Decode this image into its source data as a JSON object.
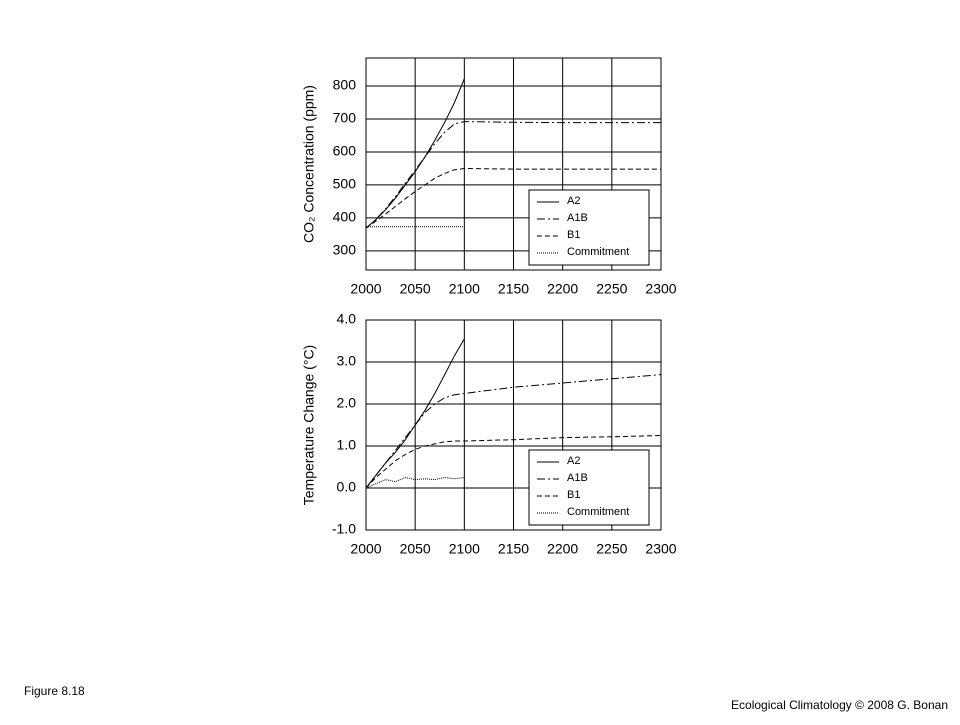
{
  "chart_data": [
    {
      "type": "line",
      "y_label": "CO₂ Concentration (ppm)",
      "x": [
        2000,
        2010,
        2020,
        2030,
        2040,
        2050,
        2060,
        2070,
        2080,
        2090,
        2100,
        2150,
        2200,
        2250,
        2300
      ],
      "xlim": [
        2000,
        2300
      ],
      "xticks": [
        2000,
        2050,
        2100,
        2150,
        2200,
        2250,
        2300
      ],
      "ylim": [
        242,
        885
      ],
      "yticks": [
        300,
        400,
        500,
        600,
        700,
        800
      ],
      "grid": true,
      "legend": "lower right",
      "series": [
        {
          "name": "A2",
          "color": "#000000",
          "dash": "none",
          "values": [
            369,
            395,
            425,
            460,
            500,
            540,
            585,
            635,
            690,
            750,
            822,
            null,
            null,
            null,
            null
          ]
        },
        {
          "name": "A1B",
          "color": "#000000",
          "dash": "8 3 2 3",
          "values": [
            369,
            395,
            428,
            465,
            505,
            545,
            585,
            625,
            660,
            685,
            692,
            690,
            689,
            689,
            689
          ]
        },
        {
          "name": "B1",
          "color": "#000000",
          "dash": "5 3",
          "values": [
            369,
            390,
            412,
            435,
            458,
            480,
            500,
            520,
            535,
            546,
            550,
            548,
            548,
            548,
            548
          ]
        },
        {
          "name": "Commitment",
          "color": "#000000",
          "dash": "1 1",
          "values": [
            373,
            373,
            373,
            373,
            373,
            373,
            373,
            373,
            373,
            373,
            373,
            null,
            null,
            null,
            null
          ]
        }
      ]
    },
    {
      "type": "line",
      "y_label": "Temperature Change (°C)",
      "x": [
        2000,
        2010,
        2020,
        2030,
        2040,
        2050,
        2060,
        2070,
        2080,
        2090,
        2100,
        2150,
        2200,
        2250,
        2300
      ],
      "xlim": [
        2000,
        2300
      ],
      "xticks": [
        2000,
        2050,
        2100,
        2150,
        2200,
        2250,
        2300
      ],
      "ylim": [
        -1,
        4
      ],
      "yticks": [
        {
          "value": -1,
          "label": "-1.0"
        },
        {
          "value": 0,
          "label": "0.0"
        },
        {
          "value": 1,
          "label": "1.0"
        },
        {
          "value": 2,
          "label": "2.0"
        },
        {
          "value": 3,
          "label": "3.0"
        },
        {
          "value": 4,
          "label": "4.0"
        }
      ],
      "grid": true,
      "legend": "lower right",
      "series": [
        {
          "name": "A2",
          "color": "#000000",
          "dash": "none",
          "values": [
            0,
            0.3,
            0.6,
            0.85,
            1.15,
            1.5,
            1.85,
            2.25,
            2.7,
            3.15,
            3.55,
            null,
            null,
            null,
            null
          ]
        },
        {
          "name": "A1B",
          "color": "#000000",
          "dash": "8 3 2 3",
          "values": [
            0,
            0.3,
            0.6,
            0.9,
            1.2,
            1.5,
            1.8,
            2.0,
            2.15,
            2.22,
            2.25,
            2.4,
            2.5,
            2.6,
            2.7
          ]
        },
        {
          "name": "B1",
          "color": "#000000",
          "dash": "5 3",
          "values": [
            0,
            0.25,
            0.45,
            0.65,
            0.8,
            0.92,
            1.0,
            1.05,
            1.1,
            1.12,
            1.12,
            1.15,
            1.2,
            1.22,
            1.25
          ]
        },
        {
          "name": "Commitment",
          "color": "#000000",
          "dash": "1 1",
          "values": [
            0,
            0.1,
            0.2,
            0.15,
            0.25,
            0.2,
            0.22,
            0.2,
            0.25,
            0.22,
            0.25,
            null,
            null,
            null,
            null
          ]
        }
      ]
    }
  ],
  "figure_label": "Figure 8.18",
  "credit": "Ecological Climatology © 2008 G. Bonan"
}
